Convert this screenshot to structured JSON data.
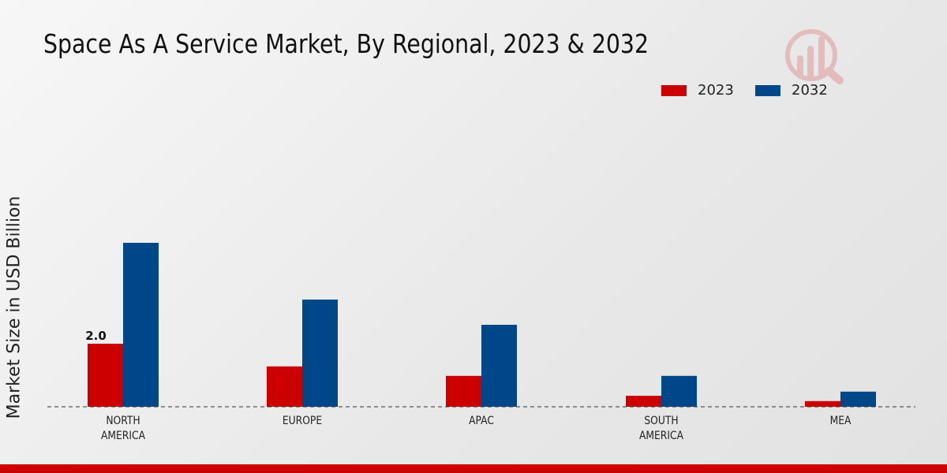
{
  "chart_data": {
    "type": "bar",
    "title": "Space As A Service Market, By Regional, 2023 & 2032",
    "xlabel": "",
    "ylabel": "Market Size in USD Billion",
    "categories": [
      "NORTH AMERICA",
      "EUROPE",
      "APAC",
      "SOUTH AMERICA",
      "MEA"
    ],
    "category_lines": [
      [
        "NORTH",
        "AMERICA"
      ],
      [
        "EUROPE"
      ],
      [
        "APAC"
      ],
      [
        "SOUTH",
        "AMERICA"
      ],
      [
        "MEA"
      ]
    ],
    "series": [
      {
        "name": "2023",
        "color": "#cc0000",
        "values": [
          2.0,
          1.28,
          0.98,
          0.35,
          0.18
        ]
      },
      {
        "name": "2032",
        "color": "#00478a",
        "values": [
          5.2,
          3.4,
          2.6,
          0.98,
          0.48
        ]
      }
    ],
    "data_labels": [
      {
        "series": 0,
        "index": 0,
        "text": "2.0"
      }
    ],
    "ylim": [
      0,
      6
    ],
    "grid": false,
    "legend_position": "top-right"
  }
}
